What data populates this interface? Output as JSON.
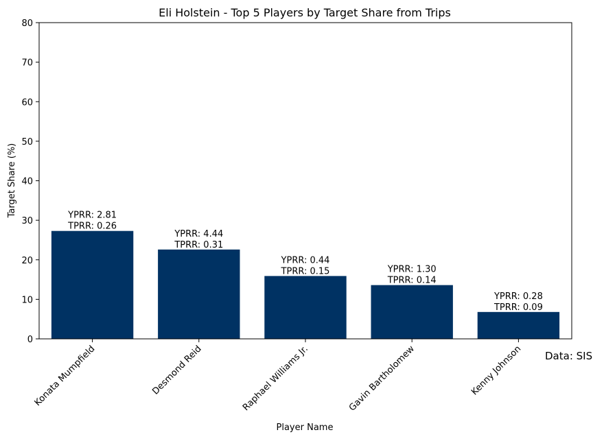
{
  "source_note": "Data: SIS",
  "chart_data": {
    "type": "bar",
    "title": "Eli Holstein - Top 5 Players by Target Share from Trips",
    "xlabel": "Player Name",
    "ylabel": "Target Share (%)",
    "ylim": [
      0,
      80
    ],
    "yticks": [
      0,
      10,
      20,
      30,
      40,
      50,
      60,
      70,
      80
    ],
    "categories": [
      "Konata Mumpfield",
      "Desmond Reid",
      "Raphael Williams Jr.",
      "Gavin Bartholomew",
      "Kenny Johnson"
    ],
    "values": [
      27.3,
      22.6,
      15.9,
      13.6,
      6.8
    ],
    "data_labels": [
      [
        "YPRR: 2.81",
        "TPRR: 0.26"
      ],
      [
        "YPRR: 4.44",
        "TPRR: 0.31"
      ],
      [
        "YPRR: 0.44",
        "TPRR: 0.15"
      ],
      [
        "YPRR: 1.30",
        "TPRR: 0.14"
      ],
      [
        "YPRR: 0.28",
        "TPRR: 0.09"
      ]
    ],
    "bar_color": "#003263",
    "grid": false,
    "legend": "none"
  }
}
